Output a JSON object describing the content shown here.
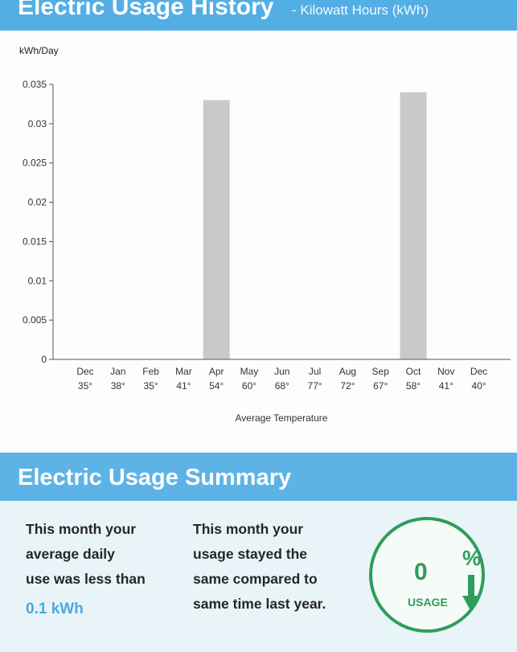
{
  "history": {
    "title": "Electric Usage History",
    "subtitle": "- Kilowatt Hours (kWh)",
    "units_label": "kWh/Day",
    "x_axis_label": "Average Temperature"
  },
  "chart_data": {
    "type": "bar",
    "title": "Electric Usage History",
    "ylabel": "kWh/Day",
    "xlabel": "Average Temperature",
    "categories": [
      "Dec",
      "Jan",
      "Feb",
      "Mar",
      "Apr",
      "May",
      "Jun",
      "Jul",
      "Aug",
      "Sep",
      "Oct",
      "Nov",
      "Dec"
    ],
    "temperatures": [
      "35°",
      "38°",
      "35°",
      "41°",
      "54°",
      "60°",
      "68°",
      "77°",
      "72°",
      "67°",
      "58°",
      "41°",
      "40°"
    ],
    "values": [
      0,
      0,
      0,
      0,
      0.033,
      0,
      0,
      0,
      0,
      0,
      0.034,
      0,
      0
    ],
    "ylim": [
      0,
      0.035
    ],
    "yticks": [
      "0",
      "0.005",
      "0.01",
      "0.015",
      "0.02",
      "0.025",
      "0.03",
      "0.035"
    ],
    "grid": false,
    "bar_color": "#c9c9c9"
  },
  "summary": {
    "title": "Electric Usage Summary",
    "col1": [
      "This month your",
      "average daily",
      "use was less than"
    ],
    "kwh": "0.1 kWh",
    "col2": [
      "This month your",
      "usage stayed the",
      "same compared to",
      "same time last year."
    ],
    "badge": {
      "value": "0",
      "percent": "%",
      "label": "USAGE",
      "icon": "arrow-down-icon",
      "color": "#2e9d5b"
    }
  },
  "colors": {
    "banner": "#53aee4",
    "summary_bg": "#e9f4f9",
    "kwh_text": "#4aa9df"
  }
}
